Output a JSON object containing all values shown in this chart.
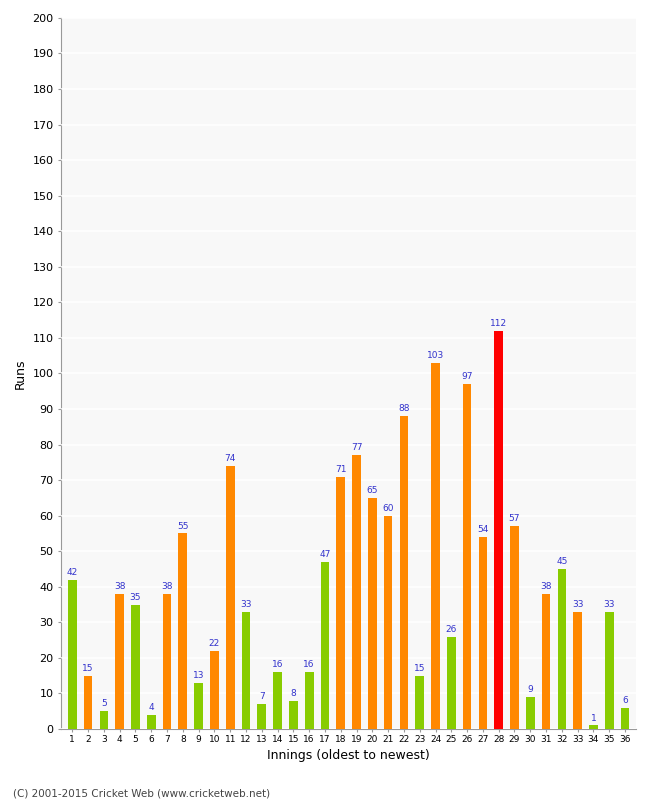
{
  "xlabel": "Innings (oldest to newest)",
  "ylabel": "Runs",
  "innings": [
    1,
    2,
    3,
    4,
    5,
    6,
    7,
    8,
    9,
    10,
    11,
    12,
    13,
    14,
    15,
    16,
    17,
    18,
    19,
    20,
    21,
    22,
    23,
    24,
    25,
    26,
    27,
    28,
    29,
    30,
    31,
    32,
    33,
    34,
    35,
    36
  ],
  "values": [
    42,
    15,
    5,
    38,
    35,
    4,
    38,
    55,
    13,
    22,
    74,
    33,
    7,
    16,
    8,
    16,
    47,
    71,
    77,
    65,
    60,
    88,
    15,
    103,
    26,
    97,
    54,
    112,
    57,
    9,
    38,
    45,
    33,
    1,
    33,
    6
  ],
  "colors": [
    "#88cc00",
    "#ff8800",
    "#88cc00",
    "#ff8800",
    "#88cc00",
    "#88cc00",
    "#ff8800",
    "#ff8800",
    "#88cc00",
    "#ff8800",
    "#ff8800",
    "#88cc00",
    "#88cc00",
    "#88cc00",
    "#88cc00",
    "#88cc00",
    "#88cc00",
    "#ff8800",
    "#ff8800",
    "#ff8800",
    "#ff8800",
    "#ff8800",
    "#88cc00",
    "#ff8800",
    "#88cc00",
    "#ff8800",
    "#ff8800",
    "#ff0000",
    "#ff8800",
    "#88cc00",
    "#ff8800",
    "#88cc00",
    "#ff8800",
    "#88cc00",
    "#88cc00",
    "#88cc00"
  ],
  "ylim": [
    0,
    200
  ],
  "yticks": [
    0,
    10,
    20,
    30,
    40,
    50,
    60,
    70,
    80,
    90,
    100,
    110,
    120,
    130,
    140,
    150,
    160,
    170,
    180,
    190,
    200
  ],
  "label_color": "#3333cc",
  "label_fontsize": 6.5,
  "bg_color": "#ffffff",
  "plot_bg_color": "#f8f8f8",
  "grid_color": "#ffffff",
  "footer": "(C) 2001-2015 Cricket Web (www.cricketweb.net)"
}
